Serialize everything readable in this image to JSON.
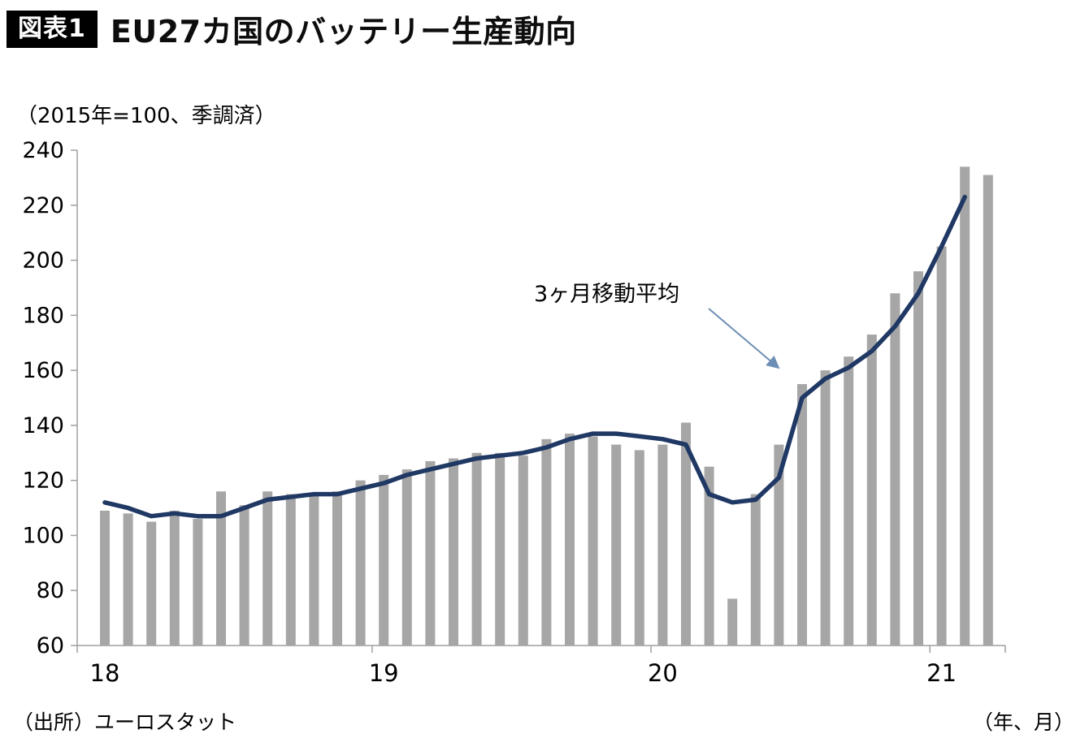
{
  "header": {
    "badge": "図表1",
    "title": "EU27カ国のバッテリー生産動向"
  },
  "footer": {
    "source": "（出所）ユーロスタット",
    "axis_unit": "（年、月）"
  },
  "chart_data": {
    "type": "bar",
    "title": "EU27カ国のバッテリー生産動向",
    "subtitle": "（2015年=100、季調済）",
    "annotation": "3ヶ月移動平均",
    "x": [
      "2018-01",
      "2018-02",
      "2018-03",
      "2018-04",
      "2018-05",
      "2018-06",
      "2018-07",
      "2018-08",
      "2018-09",
      "2018-10",
      "2018-11",
      "2018-12",
      "2019-01",
      "2019-02",
      "2019-03",
      "2019-04",
      "2019-05",
      "2019-06",
      "2019-07",
      "2019-08",
      "2019-09",
      "2019-10",
      "2019-11",
      "2019-12",
      "2020-01",
      "2020-02",
      "2020-03",
      "2020-04",
      "2020-05",
      "2020-06",
      "2020-07",
      "2020-08",
      "2020-09",
      "2020-10",
      "2020-11",
      "2020-12",
      "2021-01",
      "2021-02",
      "2021-03"
    ],
    "series": [
      {
        "name": "monthly-production-index",
        "type": "bar",
        "values": [
          109,
          108,
          105,
          109,
          106,
          116,
          111,
          116,
          115,
          115,
          116,
          120,
          122,
          124,
          127,
          128,
          130,
          130,
          129,
          135,
          137,
          136,
          133,
          131,
          133,
          141,
          125,
          77,
          115,
          133,
          155,
          160,
          165,
          173,
          188,
          196,
          205,
          234,
          231
        ]
      },
      {
        "name": "3ヶ月移動平均",
        "type": "line",
        "values": [
          112,
          110,
          107,
          108,
          107,
          107,
          110,
          113,
          114,
          115,
          115,
          117,
          119,
          122,
          124,
          126,
          128,
          129,
          130,
          132,
          135,
          137,
          137,
          136,
          135,
          133,
          115,
          112,
          113,
          121,
          150,
          157,
          161,
          167,
          176,
          188,
          205,
          223,
          null
        ]
      }
    ],
    "ylim": [
      60,
      240
    ],
    "yticks": [
      60,
      80,
      100,
      120,
      140,
      160,
      180,
      200,
      220,
      240
    ],
    "xtick_labels": [
      "18",
      "19",
      "20",
      "21"
    ],
    "grid": false,
    "legend_position": "none",
    "colors": {
      "bar": "#a6a6a6",
      "line": "#1f3864",
      "axis": "#a0a0a0",
      "arrow": "#6e8fb5"
    }
  }
}
